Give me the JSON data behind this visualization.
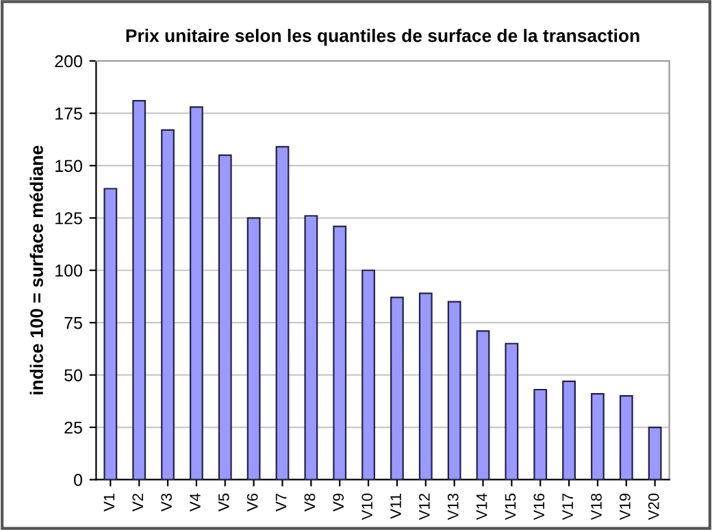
{
  "chart_data": {
    "type": "bar",
    "title": "Prix unitaire selon les quantiles de surface de la transaction",
    "ylabel": "indice 100 = surface médiane",
    "categories": [
      "V1",
      "V2",
      "V3",
      "V4",
      "V5",
      "V6",
      "V7",
      "V8",
      "V9",
      "V10",
      "V11",
      "V12",
      "V13",
      "V14",
      "V15",
      "V16",
      "V17",
      "V18",
      "V19",
      "V20"
    ],
    "values": [
      139,
      181,
      167,
      178,
      155,
      125,
      159,
      126,
      121,
      100,
      87,
      89,
      85,
      71,
      65,
      43,
      47,
      41,
      40,
      25
    ],
    "color": "#9999ff",
    "ylim": [
      0,
      200
    ],
    "yticks": [
      0,
      25,
      50,
      75,
      100,
      125,
      150,
      175,
      200
    ],
    "grid": "y",
    "legend": false
  }
}
